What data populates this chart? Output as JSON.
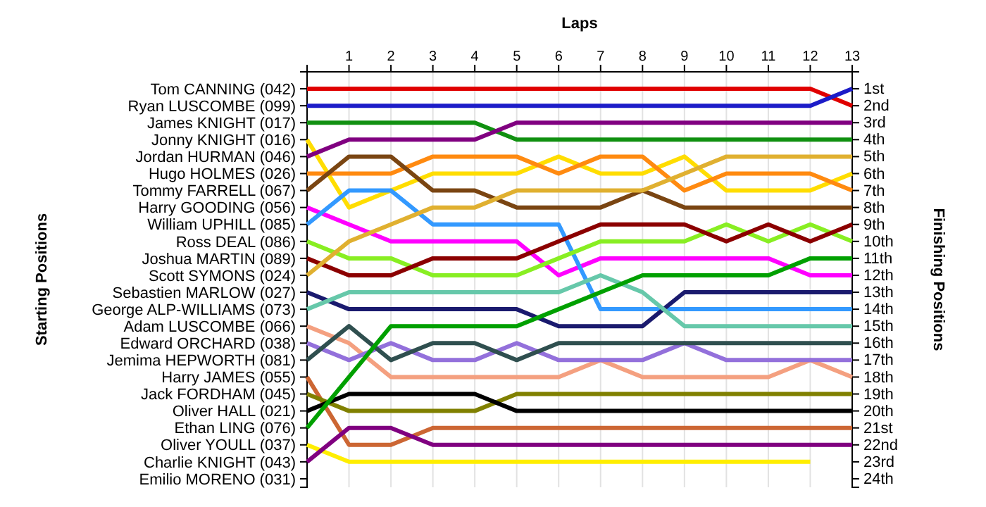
{
  "chart_data": {
    "type": "line",
    "xlabel": "Laps",
    "ylabel": "Finishing Positions",
    "x": [
      0,
      1,
      2,
      3,
      4,
      5,
      6,
      7,
      8,
      9,
      10,
      11,
      12,
      13
    ],
    "xlim": [
      0,
      13
    ],
    "xticks": [
      1,
      2,
      3,
      4,
      5,
      6,
      7,
      8,
      9,
      10,
      11,
      12,
      13
    ],
    "ylim": [
      24.5,
      0
    ],
    "yticks": [
      {
        "value": 1,
        "label": "1st"
      },
      {
        "value": 2,
        "label": "2nd"
      },
      {
        "value": 3,
        "label": "3rd"
      },
      {
        "value": 4,
        "label": "4th"
      },
      {
        "value": 5,
        "label": "5th"
      },
      {
        "value": 6,
        "label": "6th"
      },
      {
        "value": 7,
        "label": "7th"
      },
      {
        "value": 8,
        "label": "8th"
      },
      {
        "value": 9,
        "label": "9th"
      },
      {
        "value": 10,
        "label": "10th"
      },
      {
        "value": 11,
        "label": "11th"
      },
      {
        "value": 12,
        "label": "12th"
      },
      {
        "value": 13,
        "label": "13th"
      },
      {
        "value": 14,
        "label": "14th"
      },
      {
        "value": 15,
        "label": "15th"
      },
      {
        "value": 16,
        "label": "16th"
      },
      {
        "value": 17,
        "label": "17th"
      },
      {
        "value": 18,
        "label": "18th"
      },
      {
        "value": 19,
        "label": "19th"
      },
      {
        "value": 20,
        "label": "20th"
      },
      {
        "value": 21,
        "label": "21st"
      },
      {
        "value": 22,
        "label": "22nd"
      },
      {
        "value": 23,
        "label": "23rd"
      },
      {
        "value": 24,
        "label": "24th"
      }
    ],
    "grid": "x",
    "annotations": [
      "Starting Positions",
      "Tom CANNING (042)",
      "Ryan LUSCOMBE (099)",
      "James KNIGHT (017)",
      "Jonny KNIGHT (016)",
      "Jordan HURMAN (046)",
      "Hugo HOLMES (026)",
      "Tommy FARRELL (067)",
      "Harry GOODING (056)",
      "William UPHILL (085)",
      "Ross DEAL (086)",
      "Joshua MARTIN (089)",
      "Scott SYMONS (024)",
      "Sebastien MARLOW (027)",
      "George ALP-WILLIAMS (073)",
      "Adam LUSCOMBE (066)",
      "Edward ORCHARD (038)",
      "Jemima HEPWORTH (081)",
      "Harry JAMES (055)",
      "Jack FORDHAM (045)",
      "Oliver HALL (021)",
      "Ethan LING (076)",
      "Oliver YOULL (037)",
      "Charlie KNIGHT (043)",
      "Emilio MORENO (031)"
    ],
    "series": [
      {
        "color": "#e00000",
        "values": [
          1,
          1,
          1,
          1,
          1,
          1,
          1,
          1,
          1,
          1,
          1,
          1,
          1,
          2
        ]
      },
      {
        "color": "#1c1cc8",
        "values": [
          2,
          2,
          2,
          2,
          2,
          2,
          2,
          2,
          2,
          2,
          2,
          2,
          2,
          1
        ]
      },
      {
        "color": "#109010",
        "values": [
          3,
          3,
          3,
          3,
          3,
          4,
          4,
          4,
          4,
          4,
          4,
          4,
          4,
          4
        ]
      },
      {
        "color": "#ffdd00",
        "values": [
          4,
          8,
          7,
          6,
          6,
          6,
          5,
          6,
          6,
          5,
          7,
          7,
          7,
          6
        ]
      },
      {
        "color": "#800080",
        "values": [
          5,
          4,
          4,
          4,
          4,
          3,
          3,
          3,
          3,
          3,
          3,
          3,
          3,
          3
        ]
      },
      {
        "color": "#ff8a10",
        "values": [
          6,
          6,
          6,
          5,
          5,
          5,
          6,
          5,
          5,
          7,
          6,
          6,
          6,
          7
        ]
      },
      {
        "color": "#7a4512",
        "values": [
          7,
          5,
          5,
          7,
          7,
          8,
          8,
          8,
          7,
          8,
          8,
          8,
          8,
          8
        ]
      },
      {
        "color": "#ff00ff",
        "values": [
          8,
          9,
          10,
          10,
          10,
          10,
          12,
          11,
          11,
          11,
          11,
          11,
          12,
          12
        ]
      },
      {
        "color": "#3399ff",
        "values": [
          9,
          7,
          7,
          9,
          9,
          9,
          9,
          14,
          14,
          14,
          14,
          14,
          14,
          14
        ]
      },
      {
        "color": "#88ee22",
        "values": [
          10,
          11,
          11,
          12,
          12,
          12,
          11,
          10,
          10,
          10,
          9,
          10,
          9,
          10
        ]
      },
      {
        "color": "#8b0000",
        "values": [
          11,
          12,
          12,
          11,
          11,
          11,
          10,
          9,
          9,
          9,
          10,
          9,
          10,
          9
        ]
      },
      {
        "color": "#e0b030",
        "values": [
          12,
          10,
          9,
          8,
          8,
          7,
          7,
          7,
          7,
          6,
          5,
          5,
          5,
          5
        ]
      },
      {
        "color": "#1a1a6e",
        "values": [
          13,
          14,
          14,
          14,
          14,
          14,
          15,
          15,
          15,
          13,
          13,
          13,
          13,
          13
        ]
      },
      {
        "color": "#66c8aa",
        "values": [
          14,
          13,
          13,
          13,
          13,
          13,
          13,
          12,
          13,
          15,
          15,
          15,
          15,
          15
        ]
      },
      {
        "color": "#f4a080",
        "values": [
          15,
          16,
          18,
          18,
          18,
          18,
          18,
          17,
          18,
          18,
          18,
          18,
          17,
          18
        ]
      },
      {
        "color": "#9370db",
        "values": [
          16,
          17,
          16,
          17,
          17,
          16,
          17,
          17,
          17,
          16,
          17,
          17,
          17,
          17
        ]
      },
      {
        "color": "#2f4f4f",
        "values": [
          17,
          15,
          17,
          16,
          16,
          17,
          16,
          16,
          16,
          16,
          16,
          16,
          16,
          16
        ]
      },
      {
        "color": "#cc6633",
        "values": [
          18,
          22,
          22,
          21,
          21,
          21,
          21,
          21,
          21,
          21,
          21,
          21,
          21,
          21
        ]
      },
      {
        "color": "#808000",
        "values": [
          19,
          20,
          20,
          20,
          20,
          19,
          19,
          19,
          19,
          19,
          19,
          19,
          19,
          19
        ]
      },
      {
        "color": "#000000",
        "values": [
          20,
          19,
          19,
          19,
          19,
          20,
          20,
          20,
          20,
          20,
          20,
          20,
          20,
          20
        ]
      },
      {
        "color": "#00a000",
        "values": [
          21,
          18,
          15,
          15,
          15,
          15,
          14,
          13,
          12,
          12,
          12,
          12,
          11,
          11
        ]
      },
      {
        "color": "#ffee00",
        "values": [
          22,
          23,
          23,
          23,
          23,
          23,
          23,
          23,
          23,
          23,
          23,
          23,
          23,
          null
        ]
      },
      {
        "color": "#800080",
        "values": [
          23,
          21,
          21,
          22,
          22,
          22,
          22,
          22,
          22,
          22,
          22,
          22,
          22,
          22
        ]
      }
    ]
  }
}
